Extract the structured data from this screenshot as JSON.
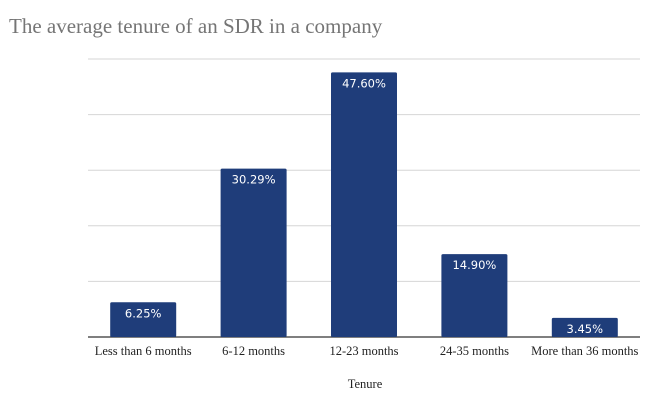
{
  "chart_data": {
    "type": "bar",
    "title": "The average tenure of an SDR in a company",
    "xlabel": "Tenure",
    "ylabel": "",
    "categories": [
      "Less than 6 months",
      "6-12 months",
      "12-23 months",
      "24-35 months",
      "More than 36 months"
    ],
    "values": [
      6.25,
      30.29,
      47.6,
      14.9,
      3.45
    ],
    "value_labels": [
      "6.25%",
      "30.29%",
      "47.60%",
      "14.90%",
      "3.45%"
    ],
    "ylim": [
      0,
      50
    ],
    "grid": true,
    "legend": "none",
    "bar_color": "#1f3d7a"
  }
}
